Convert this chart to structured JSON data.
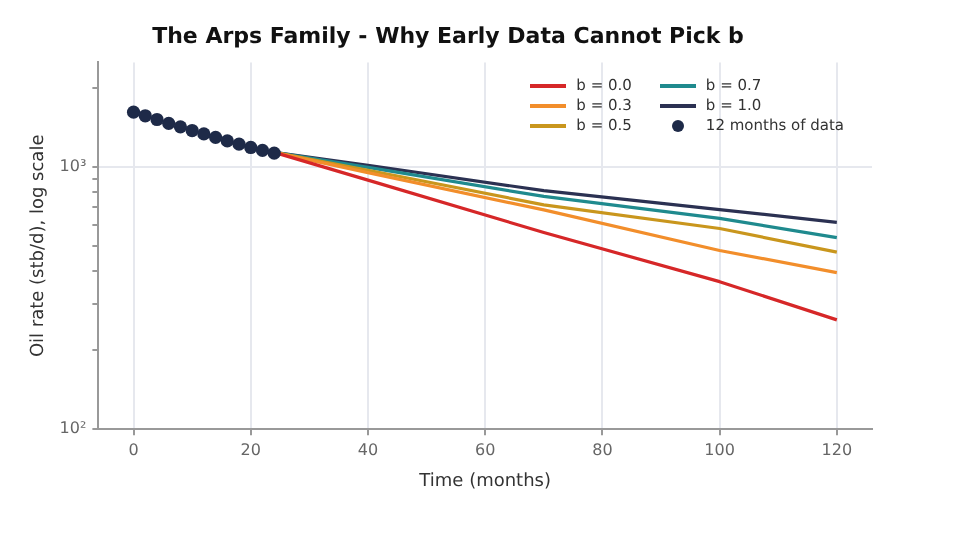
{
  "chart_data": {
    "type": "line",
    "title": "The Arps Family - Why Early Data Cannot Pick b",
    "xlabel": "Time (months)",
    "ylabel": "Oil rate (stb/d), log scale",
    "log": "y",
    "grid": true,
    "legend": "top right",
    "marker": "none",
    "line_style": "solid",
    "xlim": [
      -6,
      126
    ],
    "xticks": [
      0,
      20,
      40,
      60,
      80,
      100,
      120
    ],
    "ylim": [
      100,
      2500
    ],
    "yticks": [
      {
        "value": 100,
        "label": "10²"
      },
      {
        "value": 200,
        "label": null
      },
      {
        "value": 300,
        "label": null
      },
      {
        "value": 400,
        "label": null
      },
      {
        "value": 500,
        "label": null
      },
      {
        "value": 600,
        "label": null
      },
      {
        "value": 700,
        "label": null
      },
      {
        "value": 800,
        "label": null
      },
      {
        "value": 900,
        "label": null
      },
      {
        "value": 1000,
        "label": "10³"
      },
      {
        "value": 2000,
        "label": null
      }
    ],
    "series": [
      {
        "name": "b = 0.0",
        "color": "#d62728",
        "x": [
          24,
          40,
          70,
          100,
          120
        ],
        "values": [
          1135,
          890,
          562,
          365,
          261
        ]
      },
      {
        "name": "b = 0.3",
        "color": "#f28e2b",
        "x": [
          24,
          40,
          70,
          100,
          120
        ],
        "values": [
          1135,
          950,
          685,
          480,
          395
        ]
      },
      {
        "name": "b = 0.5",
        "color": "#c9961d",
        "x": [
          24,
          40,
          70,
          100,
          120
        ],
        "values": [
          1135,
          970,
          716,
          582,
          473
        ]
      },
      {
        "name": "b = 0.7",
        "color": "#1f8a8e",
        "x": [
          24,
          40,
          70,
          100,
          120
        ],
        "values": [
          1135,
          995,
          771,
          636,
          537
        ]
      },
      {
        "name": "b = 1.0",
        "color": "#2b3152",
        "x": [
          24,
          40,
          70,
          100,
          120
        ],
        "values": [
          1135,
          1014,
          811,
          687,
          614
        ]
      },
      {
        "name": "12 months of data",
        "type": "scatter",
        "marker": "circle",
        "color": "#1e2a48",
        "x": [
          0,
          2,
          4,
          6,
          8,
          10,
          12,
          14,
          16,
          18,
          20,
          22,
          24
        ],
        "values": [
          1615,
          1565,
          1515,
          1465,
          1420,
          1375,
          1335,
          1295,
          1255,
          1220,
          1185,
          1155,
          1128
        ]
      }
    ]
  }
}
